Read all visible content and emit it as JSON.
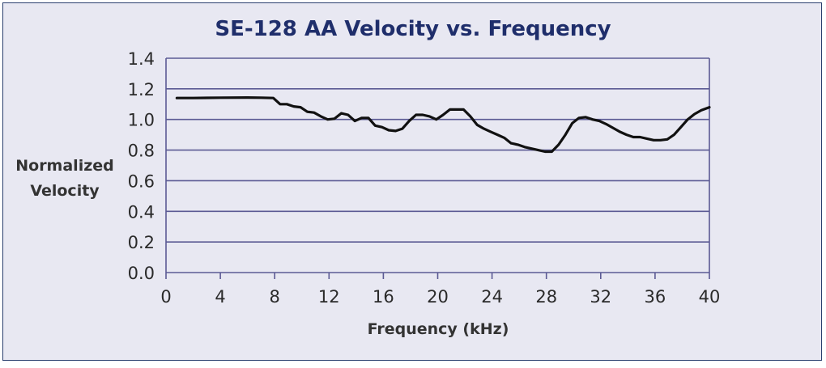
{
  "chart_data": {
    "type": "line",
    "title": "SE-128 AA Velocity vs. Frequency",
    "xlabel": "Frequency (kHz)",
    "ylabel_lines": [
      "Normalized",
      "Velocity"
    ],
    "xlim": [
      0,
      40
    ],
    "ylim": [
      0,
      1.4
    ],
    "x_ticks": [
      "0",
      "4",
      "8",
      "12",
      "16",
      "20",
      "24",
      "28",
      "32",
      "36",
      "40"
    ],
    "y_ticks": [
      "0.0",
      "0.2",
      "0.4",
      "0.6",
      "0.8",
      "1.0",
      "1.2",
      "1.4"
    ],
    "grid": true,
    "series": [
      {
        "name": "SE-128 AA",
        "color": "#111111",
        "x": [
          0.8,
          2,
          4,
          6,
          7,
          7.9,
          8.4,
          8.9,
          9.4,
          9.9,
          10.4,
          10.9,
          11.4,
          11.9,
          12.4,
          12.9,
          13.4,
          13.9,
          14.4,
          14.9,
          15.4,
          15.9,
          16.4,
          16.9,
          17.4,
          17.9,
          18.4,
          18.9,
          19.4,
          19.9,
          20.4,
          20.9,
          21.4,
          21.9,
          22.4,
          22.9,
          23.4,
          23.9,
          24.4,
          24.9,
          25.4,
          25.9,
          26.4,
          26.9,
          27.4,
          27.9,
          28.4,
          28.9,
          29.4,
          29.9,
          30.4,
          30.9,
          31.4,
          31.9,
          32.4,
          32.9,
          33.4,
          33.9,
          34.4,
          34.9,
          35.4,
          35.9,
          36.4,
          36.9,
          37.4,
          37.9,
          38.4,
          38.9,
          39.4,
          40
        ],
        "values": [
          1.14,
          1.14,
          1.142,
          1.143,
          1.142,
          1.14,
          1.1,
          1.1,
          1.085,
          1.08,
          1.05,
          1.045,
          1.02,
          1.0,
          1.005,
          1.04,
          1.03,
          0.99,
          1.01,
          1.01,
          0.96,
          0.95,
          0.93,
          0.925,
          0.94,
          0.99,
          1.03,
          1.03,
          1.02,
          1.0,
          1.03,
          1.065,
          1.065,
          1.065,
          1.02,
          0.965,
          0.94,
          0.92,
          0.9,
          0.88,
          0.845,
          0.835,
          0.82,
          0.81,
          0.8,
          0.79,
          0.79,
          0.835,
          0.9,
          0.975,
          1.01,
          1.015,
          1.0,
          0.99,
          0.97,
          0.945,
          0.92,
          0.9,
          0.885,
          0.885,
          0.875,
          0.865,
          0.865,
          0.87,
          0.9,
          0.95,
          1.0,
          1.035,
          1.06,
          1.08
        ]
      }
    ]
  }
}
